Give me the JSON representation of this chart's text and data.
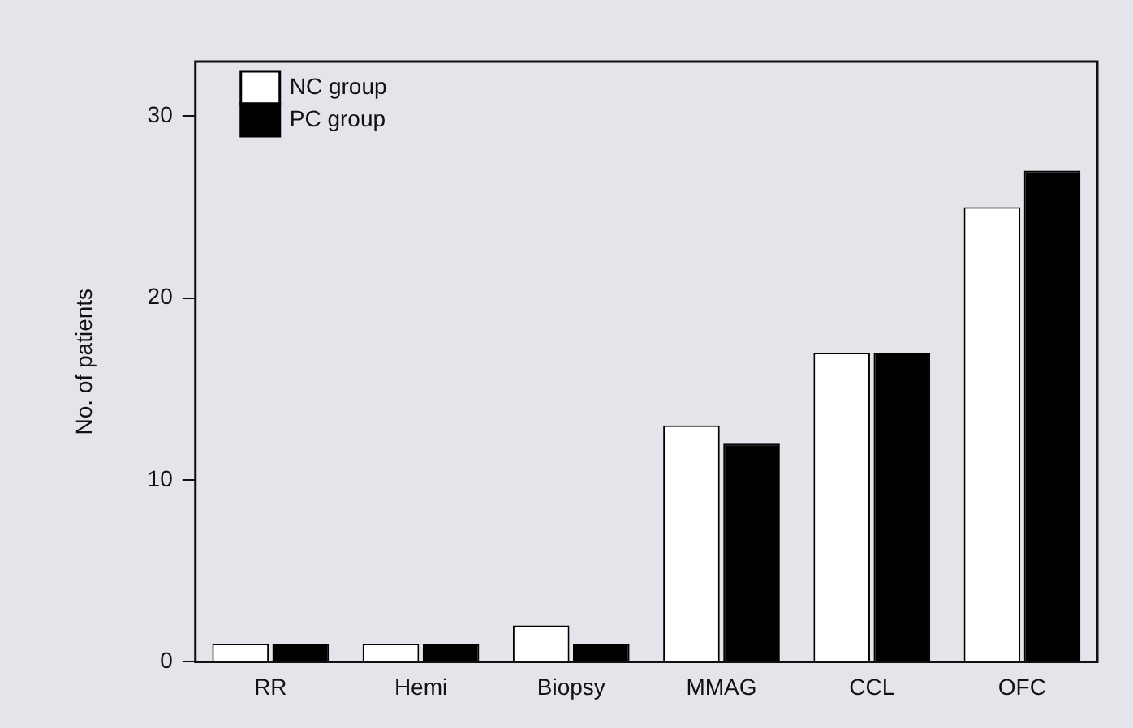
{
  "chart_data": {
    "type": "bar",
    "ylabel": "No. of patients",
    "categories": [
      "RR",
      "Hemi",
      "Biopsy",
      "MMAG",
      "CCL",
      "OFC"
    ],
    "series": [
      {
        "name": "NC group",
        "color": "#ffffff",
        "values": [
          1,
          1,
          2,
          13,
          17,
          25
        ]
      },
      {
        "name": "PC group",
        "color": "#000000",
        "values": [
          1,
          1,
          1,
          12,
          17,
          27
        ]
      }
    ],
    "ylim": [
      0,
      33
    ],
    "yticks": [
      0,
      10,
      20,
      30
    ],
    "grid": false,
    "legend": "top left"
  }
}
